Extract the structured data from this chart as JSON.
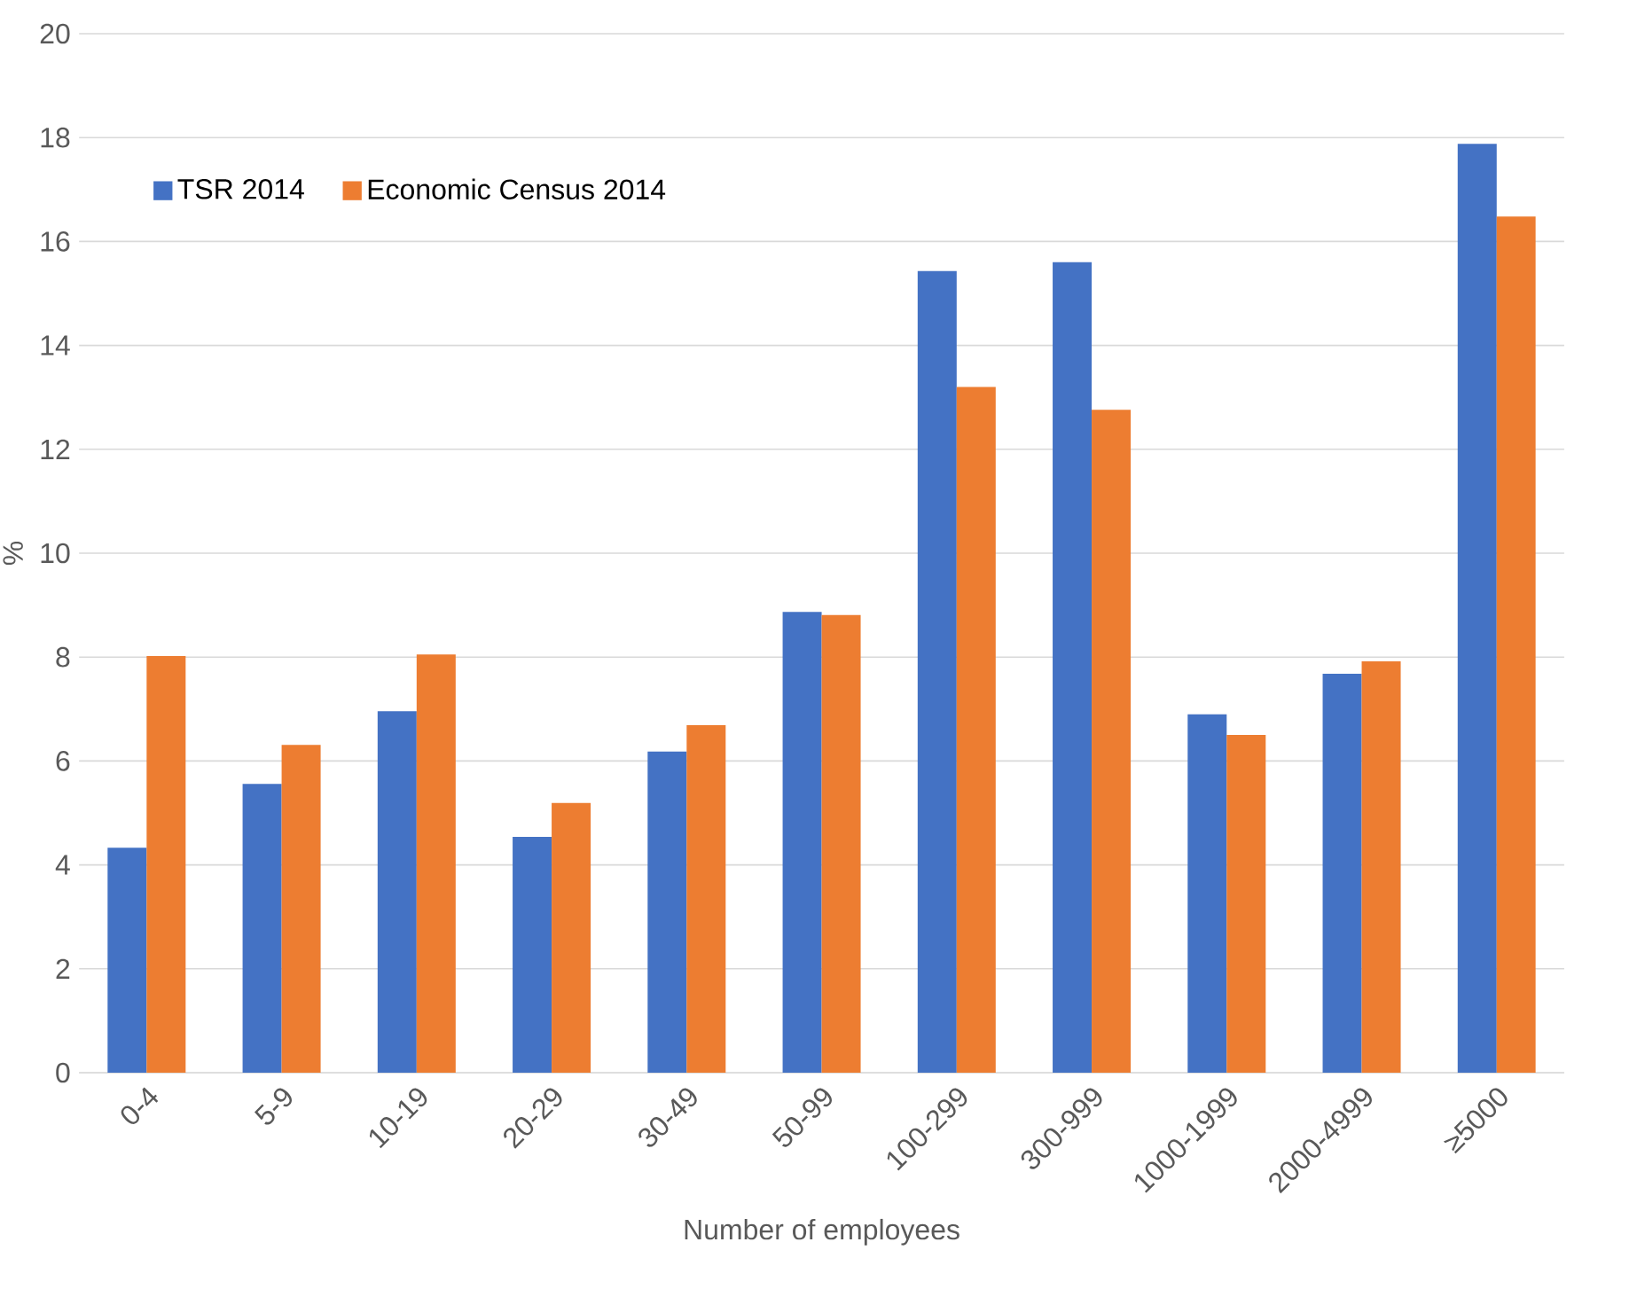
{
  "chart_data": {
    "type": "bar",
    "xlabel": "Number of employees",
    "ylabel": "%",
    "categories": [
      "0-4",
      "5-9",
      "10-19",
      "20-29",
      "30-49",
      "50-99",
      "100-299",
      "300-999",
      "1000-1999",
      "2000-4999",
      "≥5000"
    ],
    "series": [
      {
        "name": "TSR 2014",
        "color": "#4472c4",
        "values": [
          4.33,
          5.56,
          6.96,
          4.54,
          6.18,
          8.87,
          15.43,
          15.6,
          6.9,
          7.68,
          17.88
        ]
      },
      {
        "name": "Economic Census 2014",
        "color": "#ed7d31",
        "values": [
          8.02,
          6.31,
          8.05,
          5.19,
          6.69,
          8.81,
          13.2,
          12.76,
          6.5,
          7.92,
          16.48
        ]
      }
    ],
    "ylim": [
      0,
      20
    ],
    "yticks": [
      0,
      2,
      4,
      6,
      8,
      10,
      12,
      14,
      16,
      18,
      20
    ],
    "grid": "y",
    "legend": "top left"
  }
}
